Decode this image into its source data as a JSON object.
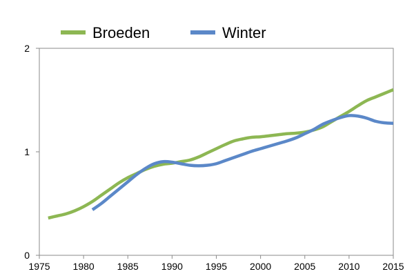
{
  "chart_data": {
    "type": "line",
    "title": "",
    "xlabel": "",
    "ylabel": "",
    "xlim": [
      1975,
      2015
    ],
    "ylim": [
      0,
      2
    ],
    "x_ticks": [
      1975,
      1980,
      1985,
      1990,
      1995,
      2000,
      2005,
      2010,
      2015
    ],
    "y_ticks": [
      0,
      1,
      2
    ],
    "grid": false,
    "legend_position": "top",
    "series": [
      {
        "name": "Broeden",
        "color": "#8db753",
        "points": [
          [
            1976,
            0.36
          ],
          [
            1977,
            0.38
          ],
          [
            1978,
            0.4
          ],
          [
            1979,
            0.43
          ],
          [
            1980,
            0.47
          ],
          [
            1981,
            0.52
          ],
          [
            1982,
            0.58
          ],
          [
            1983,
            0.64
          ],
          [
            1984,
            0.7
          ],
          [
            1985,
            0.75
          ],
          [
            1986,
            0.79
          ],
          [
            1987,
            0.83
          ],
          [
            1988,
            0.86
          ],
          [
            1989,
            0.88
          ],
          [
            1990,
            0.89
          ],
          [
            1991,
            0.905
          ],
          [
            1992,
            0.92
          ],
          [
            1993,
            0.95
          ],
          [
            1994,
            0.99
          ],
          [
            1995,
            1.03
          ],
          [
            1996,
            1.07
          ],
          [
            1997,
            1.105
          ],
          [
            1998,
            1.125
          ],
          [
            1999,
            1.14
          ],
          [
            2000,
            1.145
          ],
          [
            2001,
            1.155
          ],
          [
            2002,
            1.165
          ],
          [
            2003,
            1.175
          ],
          [
            2004,
            1.18
          ],
          [
            2005,
            1.19
          ],
          [
            2006,
            1.21
          ],
          [
            2007,
            1.24
          ],
          [
            2008,
            1.29
          ],
          [
            2009,
            1.34
          ],
          [
            2010,
            1.39
          ],
          [
            2011,
            1.445
          ],
          [
            2012,
            1.495
          ],
          [
            2013,
            1.53
          ],
          [
            2014,
            1.565
          ],
          [
            2015,
            1.6
          ]
        ]
      },
      {
        "name": "Winter",
        "color": "#5b88c8",
        "points": [
          [
            1981,
            0.44
          ],
          [
            1982,
            0.5
          ],
          [
            1983,
            0.57
          ],
          [
            1984,
            0.64
          ],
          [
            1985,
            0.71
          ],
          [
            1986,
            0.78
          ],
          [
            1987,
            0.84
          ],
          [
            1988,
            0.885
          ],
          [
            1989,
            0.905
          ],
          [
            1990,
            0.9
          ],
          [
            1991,
            0.885
          ],
          [
            1992,
            0.87
          ],
          [
            1993,
            0.865
          ],
          [
            1994,
            0.87
          ],
          [
            1995,
            0.885
          ],
          [
            1996,
            0.915
          ],
          [
            1997,
            0.945
          ],
          [
            1998,
            0.975
          ],
          [
            1999,
            1.005
          ],
          [
            2000,
            1.03
          ],
          [
            2001,
            1.055
          ],
          [
            2002,
            1.08
          ],
          [
            2003,
            1.105
          ],
          [
            2004,
            1.135
          ],
          [
            2005,
            1.175
          ],
          [
            2006,
            1.215
          ],
          [
            2007,
            1.265
          ],
          [
            2008,
            1.3
          ],
          [
            2009,
            1.33
          ],
          [
            2010,
            1.35
          ],
          [
            2011,
            1.345
          ],
          [
            2012,
            1.325
          ],
          [
            2013,
            1.295
          ],
          [
            2014,
            1.28
          ],
          [
            2015,
            1.275
          ]
        ]
      }
    ]
  }
}
